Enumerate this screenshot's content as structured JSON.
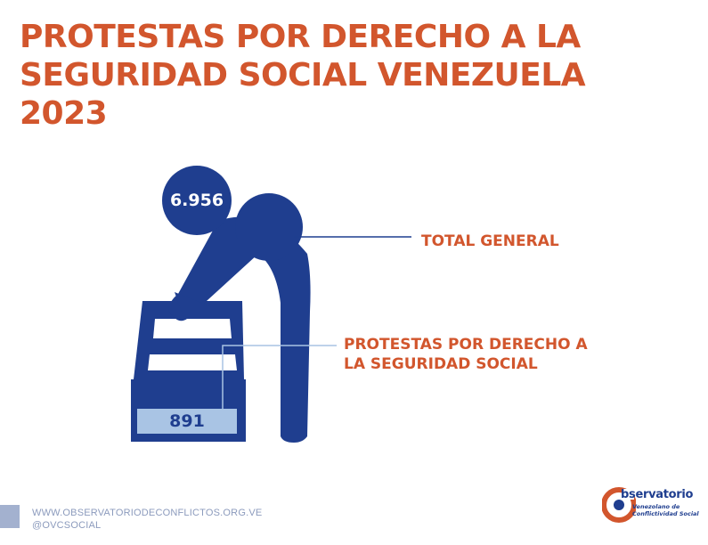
{
  "title": {
    "line1": "PROTESTAS POR DERECHO A LA",
    "line2": "SEGURIDAD SOCIAL VENEZUELA",
    "line3": "2023"
  },
  "figure": {
    "total_value": "6.956",
    "total_label": "TOTAL GENERAL",
    "ss_value": "891",
    "ss_label_line1": "PROTESTAS POR DERECHO A",
    "ss_label_line2": "LA SEGURIDAD SOCIAL",
    "colors": {
      "primary": "#1f3e8f",
      "accent": "#d2562d",
      "light": "#a9c4e4"
    }
  },
  "footer": {
    "website": "WWW.OBSERVATORIODECONFLICTOS.ORG.VE",
    "handle": "@OVCSOCIAL"
  },
  "logo": {
    "name": "bservatorio",
    "sub_line1": "Venezolano de",
    "sub_line2": "Conflictividad Social"
  }
}
